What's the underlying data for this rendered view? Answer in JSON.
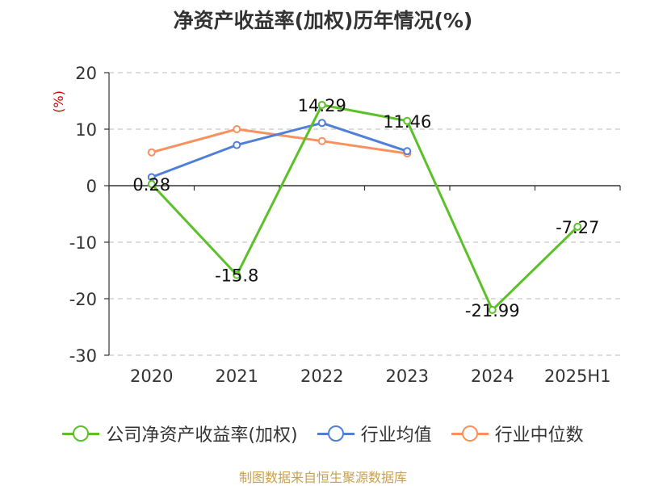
{
  "chart_data": {
    "type": "line",
    "title": "净资产收益率(加权)历年情况(%)",
    "ylabel": "(%)",
    "categories": [
      "2020",
      "2021",
      "2022",
      "2023",
      "2024",
      "2025H1"
    ],
    "ylim": [
      -30,
      20
    ],
    "yticks": [
      20,
      10,
      0,
      -10,
      -20,
      -30
    ],
    "grid": true,
    "legend_position": "bottom",
    "series": [
      {
        "name": "公司净资产收益率(加权)",
        "color": "#5cc02a",
        "values": [
          0.28,
          -15.8,
          14.29,
          11.46,
          -21.99,
          -7.27
        ],
        "labels": [
          "0.28",
          "-15.8",
          "14.29",
          "11.46",
          "-21.99",
          "-7.27"
        ]
      },
      {
        "name": "行业均值",
        "color": "#4f7fd6",
        "values": [
          1.5,
          7.2,
          11.1,
          6.1,
          null,
          null
        ]
      },
      {
        "name": "行业中位数",
        "color": "#f79160",
        "values": [
          5.9,
          10.0,
          7.9,
          5.7,
          null,
          null
        ]
      }
    ]
  },
  "source": "制图数据来自恒生聚源数据库"
}
